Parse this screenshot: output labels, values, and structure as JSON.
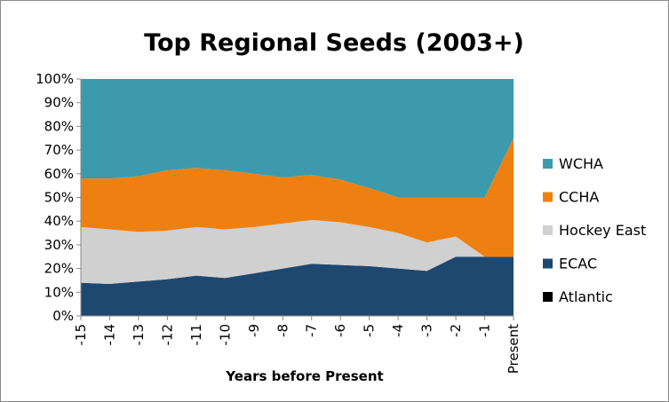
{
  "chart_data": {
    "type": "area",
    "stacked": true,
    "title": "Top Regional Seeds (2003+)",
    "xlabel": "Years before Present",
    "ylabel": "",
    "ylim": [
      0,
      100
    ],
    "y_tick_format": "percent",
    "y_ticks": [
      "0%",
      "10%",
      "20%",
      "30%",
      "40%",
      "50%",
      "60%",
      "70%",
      "80%",
      "90%",
      "100%"
    ],
    "categories": [
      "-15",
      "-14",
      "-13",
      "-12",
      "-11",
      "-10",
      "-9",
      "-8",
      "-7",
      "-6",
      "-5",
      "-4",
      "-3",
      "-2",
      "-1",
      "Present"
    ],
    "legend_position": "right",
    "grid": false,
    "series": [
      {
        "name": "Atlantic",
        "color": "#000000",
        "values": [
          0,
          0,
          0,
          0,
          0,
          0,
          0,
          0,
          0,
          0,
          0,
          0,
          0,
          0,
          0,
          0
        ]
      },
      {
        "name": "ECAC",
        "color": "#1f4870",
        "values": [
          14,
          13.5,
          14.5,
          15.5,
          17,
          16,
          18,
          20,
          22,
          21.5,
          21,
          20,
          19,
          25,
          25,
          25
        ]
      },
      {
        "name": "Hockey East",
        "color": "#d0d0d0",
        "values": [
          23.5,
          23,
          21,
          20.5,
          20.5,
          20.5,
          19.5,
          19,
          18.5,
          18,
          16.5,
          15,
          12,
          8.5,
          0,
          0
        ]
      },
      {
        "name": "CCHA",
        "color": "#ee8012",
        "values": [
          20.5,
          21.5,
          23.5,
          25.5,
          25,
          25,
          22.5,
          19.5,
          19,
          18,
          16.5,
          15,
          19,
          16.5,
          25,
          50
        ]
      },
      {
        "name": "WCHA",
        "color": "#3d9aad",
        "values": [
          42,
          42,
          41,
          38.5,
          37.5,
          38.5,
          40,
          41.5,
          40.5,
          42.5,
          46,
          50,
          50,
          50,
          50,
          25
        ]
      }
    ],
    "legend_order": [
      "WCHA",
      "CCHA",
      "Hockey East",
      "ECAC",
      "Atlantic"
    ]
  }
}
